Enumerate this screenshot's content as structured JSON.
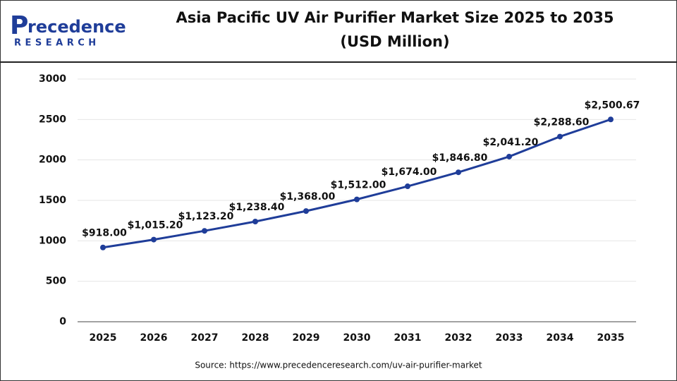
{
  "logo": {
    "name": "recedence",
    "initial": "P",
    "sub": "RESEARCH"
  },
  "chart_data": {
    "type": "line",
    "title": "Asia Pacific UV Air Purifier Market Size 2025 to 2035",
    "subtitle": "(USD Million)",
    "categories": [
      "2025",
      "2026",
      "2027",
      "2028",
      "2029",
      "2030",
      "2031",
      "2032",
      "2033",
      "2034",
      "2035"
    ],
    "values": [
      918.0,
      1015.2,
      1123.2,
      1238.4,
      1368.0,
      1512.0,
      1674.0,
      1846.8,
      2041.2,
      2288.6,
      2500.67
    ],
    "value_labels": [
      "$918.00",
      "$1,015.20",
      "$1,123.20",
      "$1,238.40",
      "$1,368.00",
      "$1,512.00",
      "$1,674.00",
      "$1,846.80",
      "$2,041.20",
      "$2,288.60",
      "$2,500.67"
    ],
    "color": "#1f3d99",
    "ylim": [
      0,
      3000
    ],
    "yticks": [
      0,
      500,
      1000,
      1500,
      2000,
      2500,
      3000
    ],
    "grid": true,
    "source": "Source: https://www.precedenceresearch.com/uv-air-purifier-market"
  }
}
